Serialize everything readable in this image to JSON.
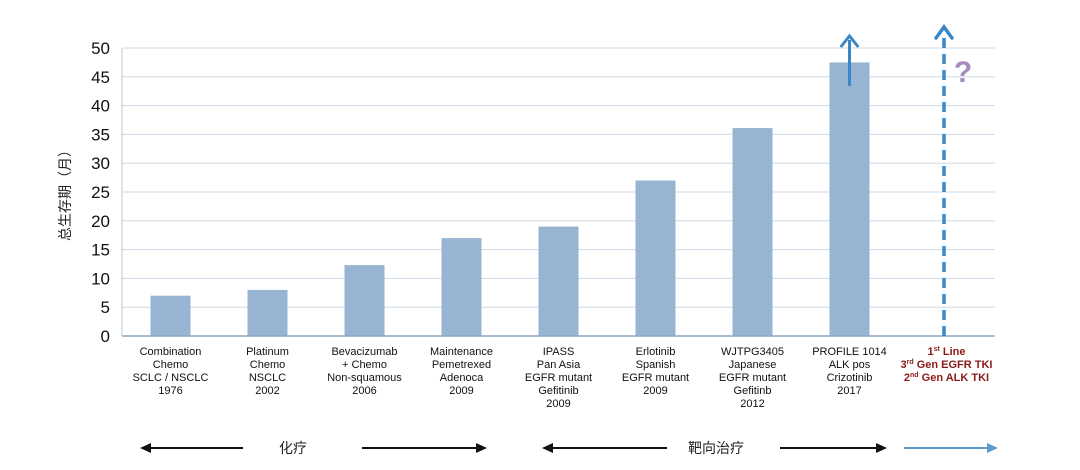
{
  "chart_data": {
    "type": "bar",
    "ylabel": "总生存期（月）",
    "ylim": [
      0,
      50
    ],
    "yticks": [
      0,
      5,
      10,
      15,
      20,
      25,
      30,
      35,
      40,
      45,
      50
    ],
    "grid": true,
    "bar_color": "#97b4d2",
    "categories": [
      [
        "Combination",
        "Chemo",
        "SCLC / NSCLC",
        "1976"
      ],
      [
        "Platinum",
        "Chemo",
        "NSCLC",
        "2002"
      ],
      [
        "Bevacizumab",
        "+ Chemo",
        "Non-squamous",
        "2006"
      ],
      [
        "Maintenance",
        "Pemetrexed",
        "Adenoca",
        "2009"
      ],
      [
        "IPASS",
        "Pan Asia",
        "EGFR mutant",
        "Gefitinib",
        "2009"
      ],
      [
        "Erlotinib",
        "Spanish",
        "EGFR mutant",
        "2009"
      ],
      [
        "WJTPG3405",
        "Japanese",
        "EGFR mutant",
        "Gefitinb",
        "2012"
      ],
      [
        "PROFILE 1014",
        "ALK pos",
        "Crizotinib",
        "2017"
      ]
    ],
    "values": [
      7,
      8,
      12.3,
      17,
      19,
      27,
      36.1,
      47.5
    ],
    "last_category": [
      {
        "pre": "1",
        "sup": "st",
        "post": " Line"
      },
      {
        "pre": "3",
        "sup": "rd",
        "post": " Gen EGFR TKI"
      },
      {
        "pre": "2",
        "sup": "nd",
        "post": " Gen ALK TKI"
      }
    ],
    "annotation_question": "?",
    "arrow_color": "#3a87c6",
    "last_label_color": "#8b1a1a",
    "phases": [
      {
        "label": "化疗"
      },
      {
        "label": "靶向治疗"
      }
    ]
  }
}
